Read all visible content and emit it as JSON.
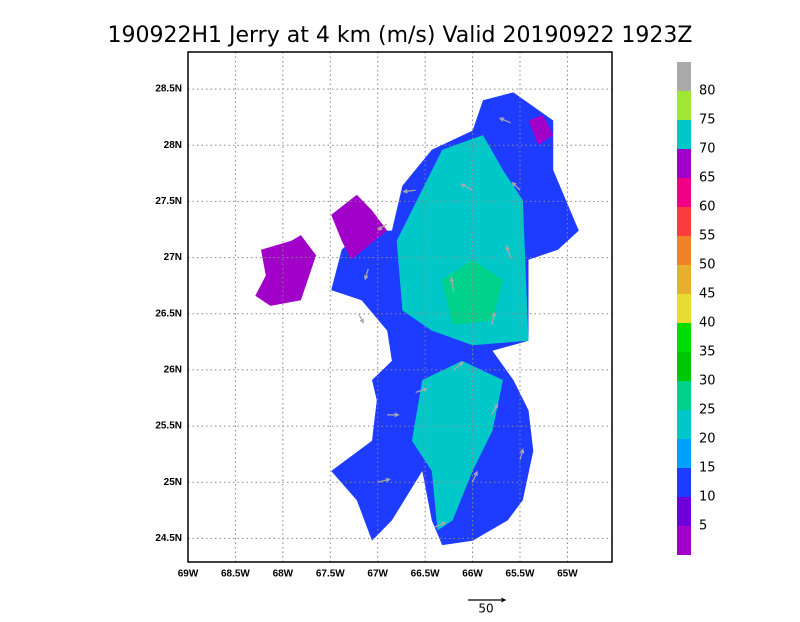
{
  "chart_data": {
    "type": "wind-map",
    "title": "190922H1 Jerry at 4 km (m/s) Valid 20190922 1923Z",
    "xlim": [
      -69,
      -64.53
    ],
    "ylim": [
      24.29,
      28.83
    ],
    "xticks": [
      {
        "value": -69,
        "label": "69W"
      },
      {
        "value": -68.5,
        "label": "68.5W"
      },
      {
        "value": -68,
        "label": "68W"
      },
      {
        "value": -67.5,
        "label": "67.5W"
      },
      {
        "value": -67,
        "label": "67W"
      },
      {
        "value": -66.5,
        "label": "66.5W"
      },
      {
        "value": -66,
        "label": "66W"
      },
      {
        "value": -65.5,
        "label": "65.5W"
      },
      {
        "value": -65,
        "label": "65W"
      }
    ],
    "yticks": [
      {
        "value": 24.5,
        "label": "24.5N"
      },
      {
        "value": 25,
        "label": "25N"
      },
      {
        "value": 25.5,
        "label": "25.5N"
      },
      {
        "value": 26,
        "label": "26N"
      },
      {
        "value": 26.5,
        "label": "26.5N"
      },
      {
        "value": 27,
        "label": "27N"
      },
      {
        "value": 27.5,
        "label": "27.5N"
      },
      {
        "value": 28,
        "label": "28N"
      },
      {
        "value": 28.5,
        "label": "28.5N"
      }
    ],
    "grid": true,
    "colorbar": {
      "levels": [
        5,
        10,
        15,
        20,
        25,
        30,
        35,
        40,
        45,
        50,
        55,
        60,
        65,
        70,
        75,
        80
      ],
      "colors": [
        "#a000c8",
        "#6e00dc",
        "#1e3cff",
        "#00a0ff",
        "#00c8c8",
        "#00d28c",
        "#00c800",
        "#00dc00",
        "#e6dc32",
        "#e6af2d",
        "#f08228",
        "#fa3c3c",
        "#f00082",
        "#a000c8",
        "#00c8c8",
        "#a0e632",
        "#aaaaaa"
      ]
    },
    "regions": [
      {
        "value": 12,
        "points": [
          [
            -66.74,
            27.64
          ],
          [
            -66.43,
            27.96
          ],
          [
            -66.0,
            28.13
          ],
          [
            -65.89,
            28.4
          ],
          [
            -65.57,
            28.47
          ],
          [
            -65.15,
            28.22
          ],
          [
            -65.15,
            27.78
          ],
          [
            -64.88,
            27.24
          ],
          [
            -65.1,
            27.07
          ],
          [
            -65.41,
            26.98
          ],
          [
            -65.41,
            26.26
          ],
          [
            -65.79,
            26.17
          ],
          [
            -65.57,
            25.91
          ],
          [
            -65.41,
            25.64
          ],
          [
            -65.36,
            25.28
          ],
          [
            -65.47,
            24.84
          ],
          [
            -65.63,
            24.66
          ],
          [
            -66.0,
            24.48
          ],
          [
            -66.32,
            24.44
          ],
          [
            -66.43,
            24.66
          ],
          [
            -66.53,
            25.1
          ],
          [
            -66.85,
            24.66
          ],
          [
            -67.06,
            24.48
          ],
          [
            -67.22,
            24.84
          ],
          [
            -67.49,
            25.1
          ],
          [
            -67.06,
            25.37
          ],
          [
            -67.01,
            25.73
          ],
          [
            -67.06,
            25.91
          ],
          [
            -66.85,
            26.08
          ],
          [
            -66.9,
            26.35
          ],
          [
            -67.17,
            26.62
          ],
          [
            -67.49,
            26.71
          ],
          [
            -67.38,
            27.07
          ],
          [
            -67.17,
            27.24
          ],
          [
            -66.85,
            27.24
          ]
        ]
      },
      {
        "value": 20,
        "points": [
          [
            -66.8,
            27.15
          ],
          [
            -66.32,
            27.96
          ],
          [
            -65.89,
            28.09
          ],
          [
            -65.68,
            27.78
          ],
          [
            -65.47,
            27.51
          ],
          [
            -65.41,
            26.26
          ],
          [
            -66.0,
            26.22
          ],
          [
            -66.43,
            26.35
          ],
          [
            -66.74,
            26.53
          ]
        ]
      },
      {
        "value": 20,
        "points": [
          [
            -66.53,
            25.91
          ],
          [
            -66.11,
            26.08
          ],
          [
            -65.68,
            25.91
          ],
          [
            -65.79,
            25.46
          ],
          [
            -66.0,
            25.1
          ],
          [
            -66.21,
            24.66
          ],
          [
            -66.37,
            24.57
          ],
          [
            -66.43,
            25.1
          ],
          [
            -66.64,
            25.37
          ]
        ]
      },
      {
        "value": 27,
        "points": [
          [
            -66.32,
            26.8
          ],
          [
            -66.0,
            26.98
          ],
          [
            -65.68,
            26.8
          ],
          [
            -65.79,
            26.44
          ],
          [
            -66.21,
            26.4
          ]
        ]
      },
      {
        "value": 3,
        "points": [
          [
            -68.23,
            27.07
          ],
          [
            -67.91,
            27.15
          ],
          [
            -67.81,
            27.2
          ],
          [
            -67.65,
            27.02
          ],
          [
            -67.81,
            26.62
          ],
          [
            -68.13,
            26.57
          ],
          [
            -68.29,
            26.66
          ],
          [
            -68.18,
            26.84
          ]
        ]
      },
      {
        "value": 3,
        "points": [
          [
            -67.49,
            27.38
          ],
          [
            -67.22,
            27.56
          ],
          [
            -67.06,
            27.42
          ],
          [
            -66.9,
            27.24
          ],
          [
            -67.28,
            26.98
          ],
          [
            -67.38,
            27.15
          ]
        ]
      },
      {
        "value": 3,
        "points": [
          [
            -65.41,
            28.22
          ],
          [
            -65.26,
            28.27
          ],
          [
            -65.15,
            28.09
          ],
          [
            -65.31,
            28.0
          ]
        ]
      }
    ],
    "vectors": [
      {
        "lon": -66.0,
        "lat": 27.6,
        "u": -15,
        "v": 8
      },
      {
        "lon": -65.6,
        "lat": 28.2,
        "u": -14,
        "v": 6
      },
      {
        "lon": -66.6,
        "lat": 27.6,
        "u": -16,
        "v": -2
      },
      {
        "lon": -65.6,
        "lat": 27.0,
        "u": -5,
        "v": 15
      },
      {
        "lon": -65.8,
        "lat": 26.4,
        "u": 4,
        "v": 16
      },
      {
        "lon": -66.2,
        "lat": 26.0,
        "u": 12,
        "v": 10
      },
      {
        "lon": -66.6,
        "lat": 25.8,
        "u": 15,
        "v": 5
      },
      {
        "lon": -65.8,
        "lat": 25.6,
        "u": 8,
        "v": 14
      },
      {
        "lon": -66.0,
        "lat": 25.0,
        "u": 6,
        "v": 14
      },
      {
        "lon": -66.4,
        "lat": 24.6,
        "u": 14,
        "v": 6
      },
      {
        "lon": -67.0,
        "lat": 25.0,
        "u": 16,
        "v": 4
      },
      {
        "lon": -66.9,
        "lat": 25.6,
        "u": 15,
        "v": 0
      },
      {
        "lon": -67.1,
        "lat": 26.9,
        "u": -4,
        "v": -14
      },
      {
        "lon": -66.9,
        "lat": 27.3,
        "u": -12,
        "v": -8
      },
      {
        "lon": -66.2,
        "lat": 26.7,
        "u": -3,
        "v": 18
      },
      {
        "lon": -65.5,
        "lat": 27.6,
        "u": -10,
        "v": 10
      },
      {
        "lon": -67.2,
        "lat": 26.5,
        "u": 6,
        "v": -12
      },
      {
        "lon": -65.5,
        "lat": 25.2,
        "u": 4,
        "v": 14
      }
    ],
    "vector_reference": 50
  }
}
